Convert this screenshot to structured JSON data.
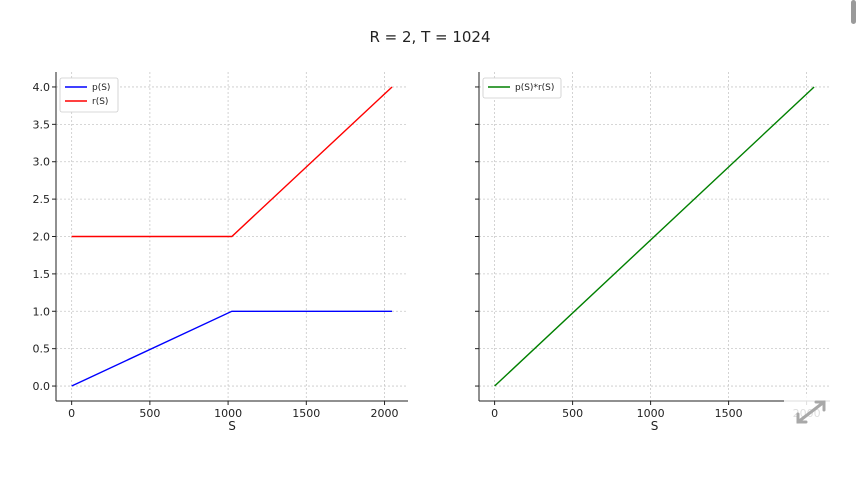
{
  "figure": {
    "title": "R = 2, T = 1024",
    "expand_icon": "expand-arrows-icon",
    "scrollbar": "scrollbar"
  },
  "chart_data": [
    {
      "type": "line",
      "title": "",
      "xlabel": "S",
      "ylabel": "",
      "xlim": [
        -100,
        2150
      ],
      "ylim": [
        -0.2,
        4.2
      ],
      "xticks": [
        0,
        500,
        1000,
        1500,
        2000
      ],
      "xtick_labels": [
        "0",
        "500",
        "1000",
        "1500",
        "2000"
      ],
      "yticks": [
        0.0,
        0.5,
        1.0,
        1.5,
        2.0,
        2.5,
        3.0,
        3.5,
        4.0
      ],
      "ytick_labels": [
        "0.0",
        "0.5",
        "1.0",
        "1.5",
        "2.0",
        "2.5",
        "3.0",
        "3.5",
        "4.0"
      ],
      "grid": true,
      "legend_position": "top-left",
      "series": [
        {
          "name": "p(S)",
          "color": "#0000ff",
          "x": [
            0,
            1024,
            2048
          ],
          "y": [
            0.0,
            1.0,
            1.0
          ]
        },
        {
          "name": "r(S)",
          "color": "#ff0000",
          "x": [
            0,
            1024,
            2048
          ],
          "y": [
            2.0,
            2.0,
            4.0
          ]
        }
      ]
    },
    {
      "type": "line",
      "title": "",
      "xlabel": "S",
      "ylabel": "",
      "xlim": [
        -100,
        2150
      ],
      "ylim": [
        -0.2,
        4.2
      ],
      "xticks": [
        0,
        500,
        1000,
        1500,
        2000
      ],
      "xtick_labels": [
        "0",
        "500",
        "1000",
        "1500",
        "2000"
      ],
      "yticks": [
        0.0,
        0.5,
        1.0,
        1.5,
        2.0,
        2.5,
        3.0,
        3.5,
        4.0
      ],
      "ytick_labels": [],
      "grid": true,
      "legend_position": "top-left",
      "series": [
        {
          "name": "p(S)*r(S)",
          "color": "#008000",
          "x": [
            0,
            2048
          ],
          "y": [
            0.0,
            4.0
          ]
        }
      ]
    }
  ]
}
